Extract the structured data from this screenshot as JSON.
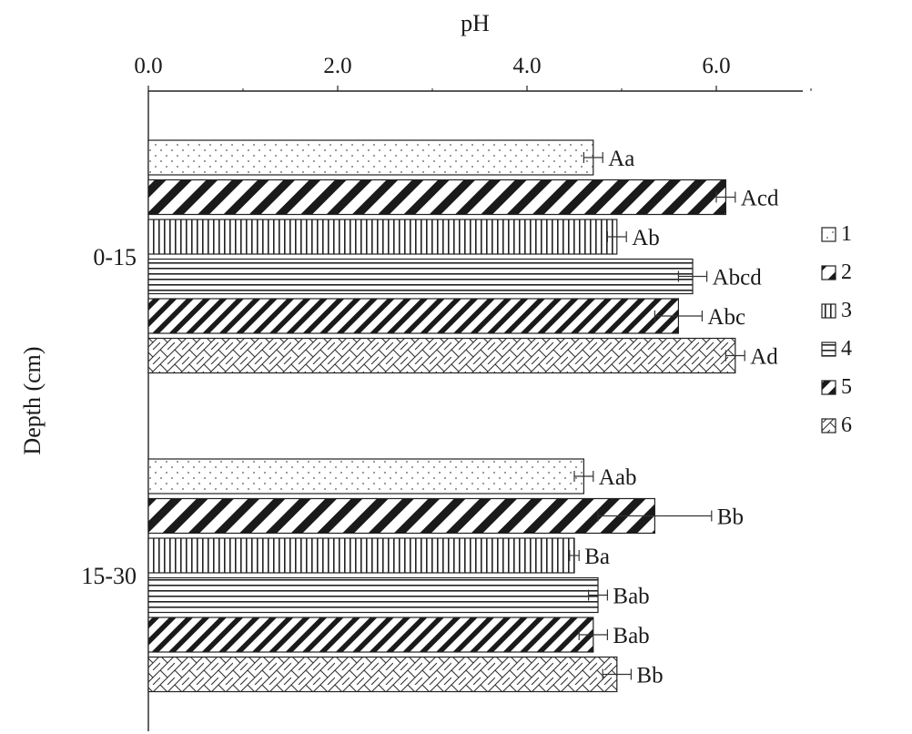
{
  "chart_data": {
    "type": "bar",
    "orientation": "horizontal",
    "xlabel": "pH",
    "ylabel": "Depth (cm)",
    "xlim": [
      0,
      7
    ],
    "x_ticks": [
      0.0,
      2.0,
      4.0,
      6.0
    ],
    "x_tick_labels": [
      "0.0",
      "2.0",
      "4.0",
      "6.0"
    ],
    "x_axis_position": "top",
    "grid": false,
    "legend_position": "right",
    "categories": [
      "0-15",
      "15-30"
    ],
    "series": [
      {
        "name": "1",
        "pattern": "dots",
        "values": [
          4.7,
          4.6
        ],
        "errors": [
          0.1,
          0.1
        ],
        "labels": [
          "Aa",
          "Aab"
        ]
      },
      {
        "name": "2",
        "pattern": "diag-wide",
        "values": [
          6.1,
          5.35
        ],
        "errors": [
          0.1,
          0.6
        ],
        "labels": [
          "Acd",
          "Bb"
        ]
      },
      {
        "name": "3",
        "pattern": "vertical",
        "values": [
          4.95,
          4.5
        ],
        "errors": [
          0.1,
          0.05
        ],
        "labels": [
          "Ab",
          "Ba"
        ]
      },
      {
        "name": "4",
        "pattern": "horizontal",
        "values": [
          5.75,
          4.75
        ],
        "errors": [
          0.15,
          0.1
        ],
        "labels": [
          "Abcd",
          "Bab"
        ]
      },
      {
        "name": "5",
        "pattern": "diag-narrow",
        "values": [
          5.6,
          4.7
        ],
        "errors": [
          0.25,
          0.15
        ],
        "labels": [
          "Abc",
          "Bab"
        ]
      },
      {
        "name": "6",
        "pattern": "brick",
        "values": [
          6.2,
          4.95
        ],
        "errors": [
          0.1,
          0.15
        ],
        "labels": [
          "Ad",
          "Bb"
        ]
      }
    ]
  }
}
